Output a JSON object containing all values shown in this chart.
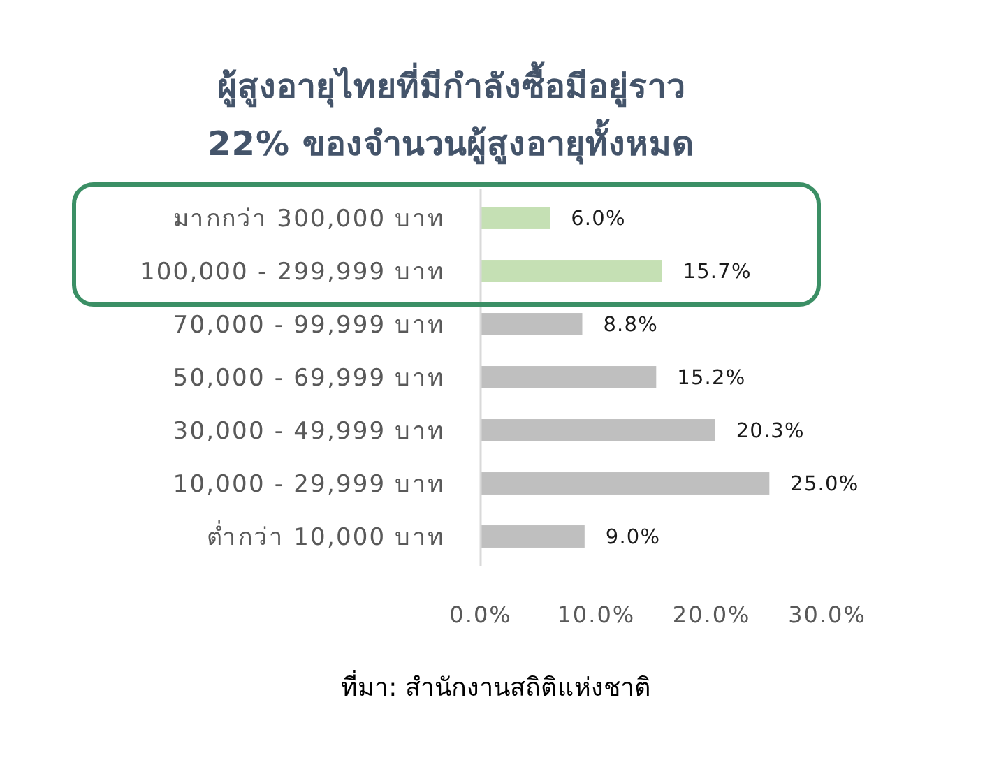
{
  "chart_data": {
    "type": "bar",
    "orientation": "horizontal",
    "title": "ผู้สูงอายุไทยที่มีกำลังซื้อมีอยู่ราว 22% ของจำนวนผู้สูงอายุทั้งหมด",
    "categories": [
      "มากกว่า 300,000 บาท",
      "100,000 - 299,999 บาท",
      "70,000 - 99,999 บาท",
      "50,000 - 69,999 บาท",
      "30,000 - 49,999 บาท",
      "10,000 - 29,999 บาท",
      "ต่ำกว่า 10,000 บาท"
    ],
    "values": [
      6.0,
      15.7,
      8.8,
      15.2,
      20.3,
      25.0,
      9.0
    ],
    "colors": [
      "#c5e0b4",
      "#c5e0b4",
      "#bfbfbf",
      "#bfbfbf",
      "#bfbfbf",
      "#bfbfbf",
      "#bfbfbf"
    ],
    "value_labels": [
      "6.0%",
      "15.7%",
      "8.8%",
      "15.2%",
      "20.3%",
      "25.0%",
      "9.0%"
    ],
    "xlim": [
      0,
      30
    ],
    "xticks": [
      {
        "value": 0,
        "label": "0.0%"
      },
      {
        "value": 10,
        "label": "10.0%"
      },
      {
        "value": 20,
        "label": "20.0%"
      },
      {
        "value": 30,
        "label": "30.0%"
      }
    ],
    "annotations": [
      "ที่มา: สำนักงานสถิติแห่งชาติ"
    ]
  }
}
